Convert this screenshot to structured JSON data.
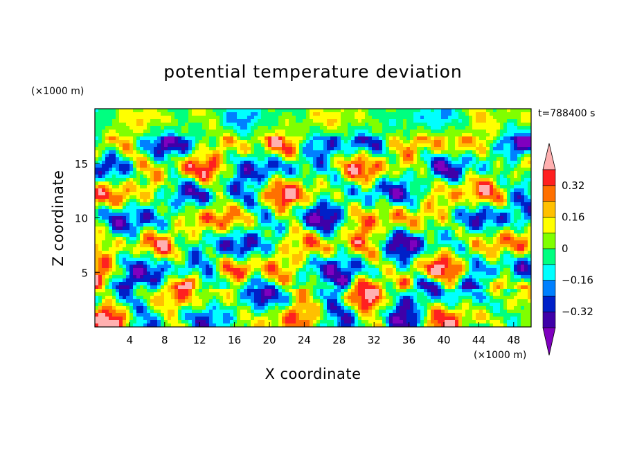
{
  "chart_data": {
    "type": "heatmap",
    "title": "potential temperature deviation",
    "xlabel": "X coordinate",
    "ylabel": "Z coordinate",
    "x_unit": "(×1000 m)",
    "y_unit": "(×1000 m)",
    "time_label": "t=788400 s",
    "xlim": [
      0,
      50
    ],
    "ylim": [
      0,
      20
    ],
    "x_ticks": [
      4,
      8,
      12,
      16,
      20,
      24,
      28,
      32,
      36,
      40,
      44,
      48
    ],
    "y_ticks": [
      5,
      10,
      15
    ],
    "colorbar": {
      "levels": [
        -0.4,
        -0.32,
        -0.24,
        -0.16,
        -0.08,
        0,
        0.08,
        0.16,
        0.24,
        0.32,
        0.4
      ],
      "colors": [
        "#7f00bf",
        "#3f00a8",
        "#0020c8",
        "#0080ff",
        "#00ffff",
        "#00ff80",
        "#80ff00",
        "#ffff00",
        "#ffc000",
        "#ff7000",
        "#ff2020",
        "#ffb0b0"
      ],
      "tick_labels": [
        "0.32",
        "0.16",
        "0",
        "−0.16",
        "−0.32"
      ],
      "tick_values": [
        0.32,
        0.16,
        0,
        -0.16,
        -0.32
      ]
    }
  },
  "colors": {
    "background": "#ffffff",
    "axis": "#000000"
  }
}
